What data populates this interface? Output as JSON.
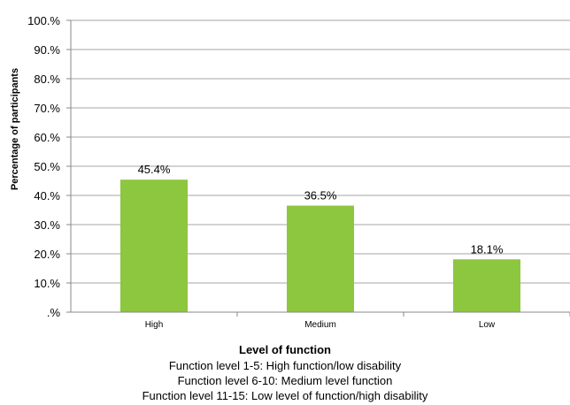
{
  "chart_data": {
    "type": "bar",
    "categories": [
      "High",
      "Medium",
      "Low"
    ],
    "values": [
      45.4,
      36.5,
      18.1
    ],
    "data_labels": [
      "45.4%",
      "36.5%",
      "18.1%"
    ],
    "ylabel": "Percentage of participants",
    "xlabel": "Level of function",
    "ylim": [
      0,
      100
    ],
    "yticks": [
      ".%",
      "10.%",
      "20.%",
      "30.%",
      "40.%",
      "50.%",
      "60.%",
      "70.%",
      "80.%",
      "90.%",
      "100.%"
    ],
    "grid": true,
    "legend": "none",
    "bar_color": "#8dc63f",
    "notes": [
      "Function level 1-5: High function/low disability",
      "Function level 6-10: Medium level function",
      "Function level 11-15: Low level of function/high disability"
    ]
  }
}
